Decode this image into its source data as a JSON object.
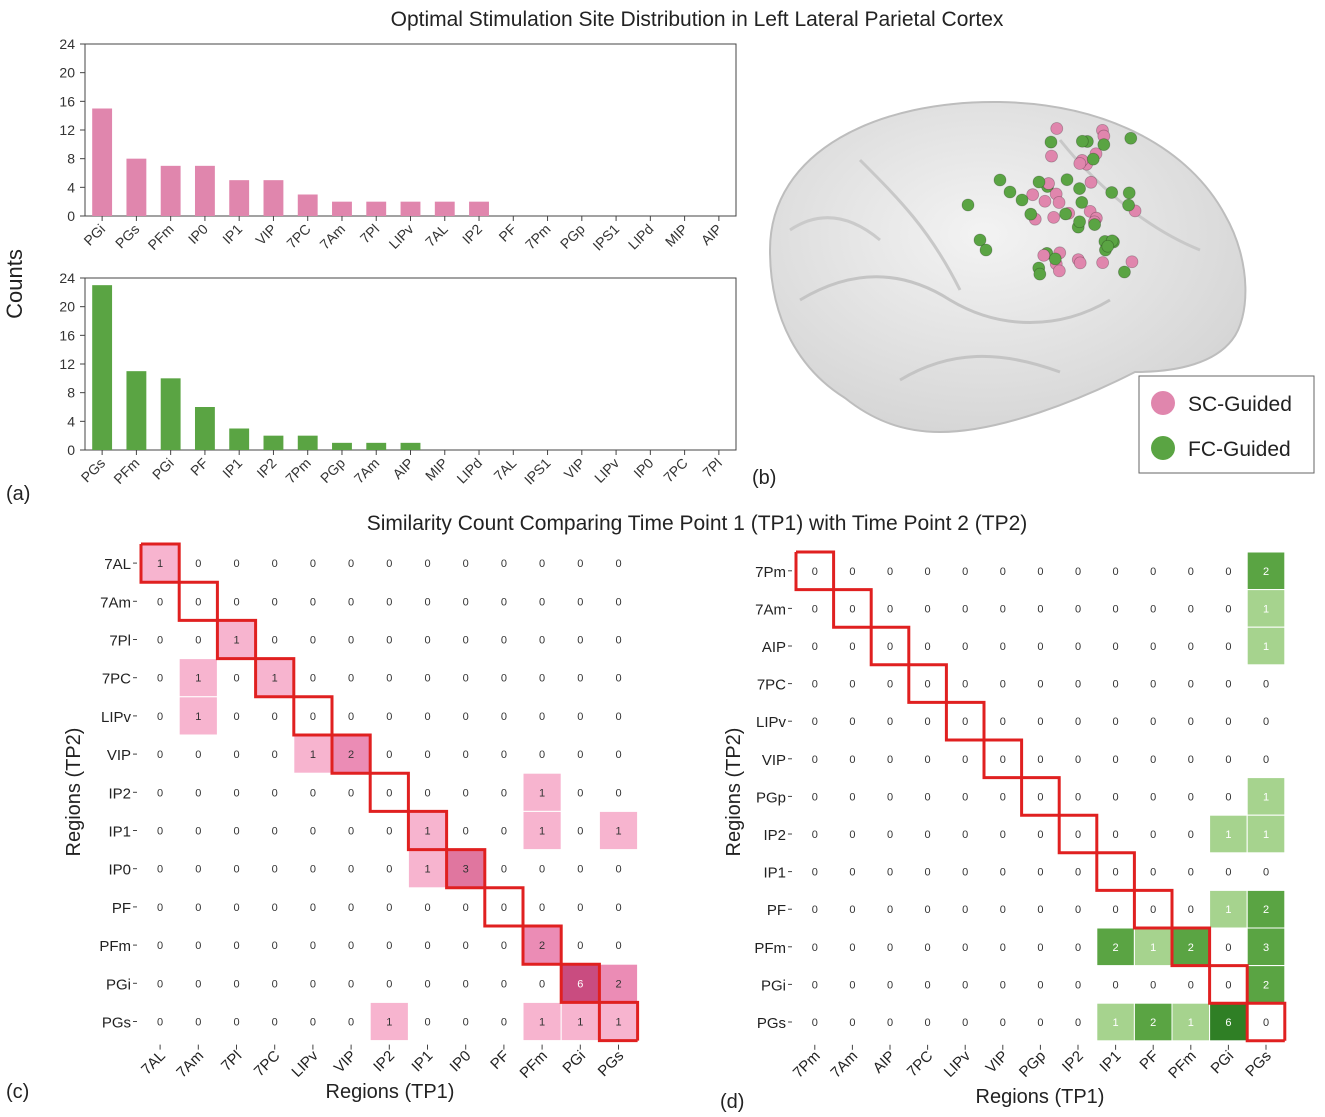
{
  "main_title": "Optimal Stimulation Site Distribution in Left Lateral Parietal Cortex",
  "sub_title": "Similarity Count Comparing Time Point 1 (TP1) with Time Point 2 (TP2)",
  "panel_labels": {
    "a": "(a)",
    "b": "(b)",
    "c": "(c)",
    "d": "(d)"
  },
  "shared_ylabel": "Counts",
  "colors": {
    "sc": "#e086ad",
    "fc": "#5aa443",
    "diag": "#e02020"
  },
  "legend": {
    "sc": "SC-Guided",
    "fc": "FC-Guided"
  },
  "chart_data": [
    {
      "type": "bar",
      "series_name": "SC-Guided",
      "categories": [
        "PGi",
        "PGs",
        "PFm",
        "IP0",
        "IP1",
        "VIP",
        "7PC",
        "7Am",
        "7Pl",
        "LIPv",
        "7AL",
        "IP2",
        "PF",
        "7Pm",
        "PGp",
        "IPS1",
        "LIPd",
        "MIP",
        "AIP"
      ],
      "values": [
        15,
        8,
        7,
        7,
        5,
        5,
        3,
        2,
        2,
        2,
        2,
        2,
        0,
        0,
        0,
        0,
        0,
        0,
        0
      ],
      "ylabel": "Counts",
      "ylim": [
        0,
        24
      ],
      "yticks": [
        0,
        4,
        8,
        12,
        16,
        20,
        24
      ]
    },
    {
      "type": "bar",
      "series_name": "FC-Guided",
      "categories": [
        "PGs",
        "PFm",
        "PGi",
        "PF",
        "IP1",
        "IP2",
        "7Pm",
        "PGp",
        "7Am",
        "AIP",
        "MIP",
        "LIPd",
        "7AL",
        "IPS1",
        "VIP",
        "LIPv",
        "IP0",
        "7PC",
        "7Pl"
      ],
      "values": [
        23,
        11,
        10,
        6,
        3,
        2,
        2,
        1,
        1,
        1,
        0,
        0,
        0,
        0,
        0,
        0,
        0,
        0,
        0
      ],
      "ylabel": "Counts",
      "ylim": [
        0,
        24
      ],
      "yticks": [
        0,
        4,
        8,
        12,
        16,
        20,
        24
      ]
    },
    {
      "type": "heatmap",
      "name": "SC-Guided similarity",
      "xlabel": "Regions (TP1)",
      "ylabel": "Regions (TP2)",
      "x_labels": [
        "7AL",
        "7Am",
        "7Pl",
        "7PC",
        "LIPv",
        "VIP",
        "IP2",
        "IP1",
        "IP0",
        "PF",
        "PFm",
        "PGi",
        "PGs"
      ],
      "y_labels": [
        "7AL",
        "7Am",
        "7Pl",
        "7PC",
        "LIPv",
        "VIP",
        "IP2",
        "IP1",
        "IP0",
        "PF",
        "PFm",
        "PGi",
        "PGs"
      ],
      "values": [
        [
          1,
          0,
          0,
          0,
          0,
          0,
          0,
          0,
          0,
          0,
          0,
          0,
          0
        ],
        [
          0,
          0,
          0,
          0,
          0,
          0,
          0,
          0,
          0,
          0,
          0,
          0,
          0
        ],
        [
          0,
          0,
          1,
          0,
          0,
          0,
          0,
          0,
          0,
          0,
          0,
          0,
          0
        ],
        [
          0,
          1,
          0,
          1,
          0,
          0,
          0,
          0,
          0,
          0,
          0,
          0,
          0
        ],
        [
          0,
          1,
          0,
          0,
          0,
          0,
          0,
          0,
          0,
          0,
          0,
          0,
          0
        ],
        [
          0,
          0,
          0,
          0,
          1,
          2,
          0,
          0,
          0,
          0,
          0,
          0,
          0
        ],
        [
          0,
          0,
          0,
          0,
          0,
          0,
          0,
          0,
          0,
          0,
          1,
          0,
          0
        ],
        [
          0,
          0,
          0,
          0,
          0,
          0,
          0,
          1,
          0,
          0,
          1,
          0,
          1
        ],
        [
          0,
          0,
          0,
          0,
          0,
          0,
          0,
          1,
          3,
          0,
          0,
          0,
          0
        ],
        [
          0,
          0,
          0,
          0,
          0,
          0,
          0,
          0,
          0,
          0,
          0,
          0,
          0
        ],
        [
          0,
          0,
          0,
          0,
          0,
          0,
          0,
          0,
          0,
          0,
          2,
          0,
          0
        ],
        [
          0,
          0,
          0,
          0,
          0,
          0,
          0,
          0,
          0,
          0,
          0,
          6,
          2
        ],
        [
          0,
          0,
          0,
          0,
          0,
          0,
          1,
          0,
          0,
          0,
          1,
          1,
          1
        ]
      ]
    },
    {
      "type": "heatmap",
      "name": "FC-Guided similarity",
      "xlabel": "Regions (TP1)",
      "ylabel": "Regions (TP2)",
      "x_labels": [
        "7Pm",
        "7Am",
        "AIP",
        "7PC",
        "LIPv",
        "VIP",
        "PGp",
        "IP2",
        "IP1",
        "PF",
        "PFm",
        "PGi",
        "PGs"
      ],
      "y_labels": [
        "7Pm",
        "7Am",
        "AIP",
        "7PC",
        "LIPv",
        "VIP",
        "PGp",
        "IP2",
        "IP1",
        "PF",
        "PFm",
        "PGi",
        "PGs"
      ],
      "values": [
        [
          0,
          0,
          0,
          0,
          0,
          0,
          0,
          0,
          0,
          0,
          0,
          0,
          2
        ],
        [
          0,
          0,
          0,
          0,
          0,
          0,
          0,
          0,
          0,
          0,
          0,
          0,
          1
        ],
        [
          0,
          0,
          0,
          0,
          0,
          0,
          0,
          0,
          0,
          0,
          0,
          0,
          1
        ],
        [
          0,
          0,
          0,
          0,
          0,
          0,
          0,
          0,
          0,
          0,
          0,
          0,
          0
        ],
        [
          0,
          0,
          0,
          0,
          0,
          0,
          0,
          0,
          0,
          0,
          0,
          0,
          0
        ],
        [
          0,
          0,
          0,
          0,
          0,
          0,
          0,
          0,
          0,
          0,
          0,
          0,
          0
        ],
        [
          0,
          0,
          0,
          0,
          0,
          0,
          0,
          0,
          0,
          0,
          0,
          0,
          1
        ],
        [
          0,
          0,
          0,
          0,
          0,
          0,
          0,
          0,
          0,
          0,
          0,
          1,
          1
        ],
        [
          0,
          0,
          0,
          0,
          0,
          0,
          0,
          0,
          0,
          0,
          0,
          0,
          0
        ],
        [
          0,
          0,
          0,
          0,
          0,
          0,
          0,
          0,
          0,
          0,
          0,
          1,
          2
        ],
        [
          0,
          0,
          0,
          0,
          0,
          0,
          0,
          0,
          2,
          1,
          2,
          0,
          3
        ],
        [
          0,
          0,
          0,
          0,
          0,
          0,
          0,
          0,
          0,
          0,
          0,
          0,
          2
        ],
        [
          0,
          0,
          0,
          0,
          0,
          0,
          0,
          0,
          1,
          2,
          1,
          6,
          0
        ]
      ]
    }
  ]
}
